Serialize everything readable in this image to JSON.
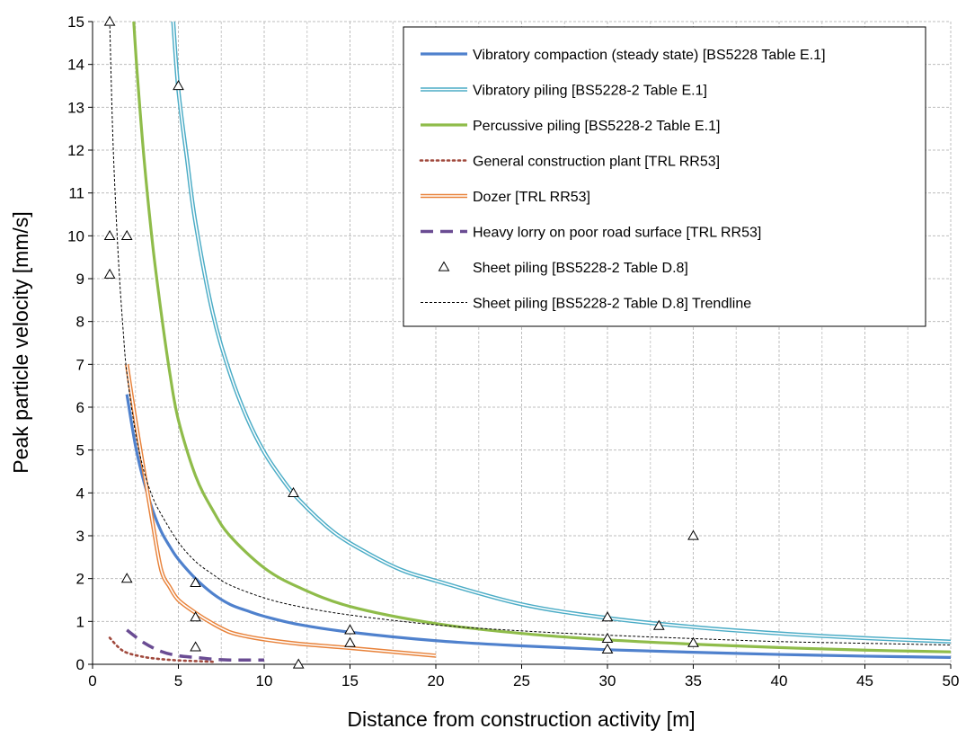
{
  "chart_data": {
    "type": "line",
    "title": "",
    "xlabel": "Distance from construction activity [m]",
    "ylabel": "Peak particle velocity [mm/s]",
    "xlim": [
      0,
      50
    ],
    "ylim": [
      0,
      15
    ],
    "xticks": [
      0,
      5,
      10,
      15,
      20,
      25,
      30,
      35,
      40,
      45,
      50
    ],
    "yticks": [
      0,
      1,
      2,
      3,
      4,
      5,
      6,
      7,
      8,
      9,
      10,
      11,
      12,
      13,
      14,
      15
    ],
    "grid": true,
    "grid_style": "dashed",
    "legend_position": "top-right",
    "series": [
      {
        "name": "Vibratory compaction (steady state) [BS5228 Table E.1]",
        "style": "solid-thick",
        "color": "#4f81cd",
        "x": [
          2,
          2.5,
          3,
          3.5,
          4,
          4.5,
          5,
          6,
          7,
          8,
          9,
          10,
          12,
          15,
          20,
          25,
          30,
          35,
          40,
          45,
          50
        ],
        "y": [
          6.3,
          5.1,
          4.25,
          3.6,
          3.1,
          2.75,
          2.45,
          2.0,
          1.65,
          1.4,
          1.25,
          1.12,
          0.93,
          0.75,
          0.55,
          0.43,
          0.34,
          0.28,
          0.23,
          0.19,
          0.16
        ]
      },
      {
        "name": "Vibratory piling [BS5228-2 Table E.1]",
        "style": "double-line",
        "color": "#4bacc6",
        "x": [
          4.7,
          5,
          5.5,
          6,
          7,
          8,
          9,
          10,
          11,
          12,
          14,
          16,
          18,
          20,
          25,
          30,
          35,
          40,
          45,
          50
        ],
        "y": [
          15,
          13.4,
          11.8,
          10.3,
          8.2,
          6.8,
          5.75,
          4.95,
          4.35,
          3.85,
          3.1,
          2.6,
          2.2,
          1.95,
          1.4,
          1.08,
          0.87,
          0.72,
          0.61,
          0.53
        ]
      },
      {
        "name": "Percussive piling [BS5228-2 Table E.1]",
        "style": "solid-thick",
        "color": "#8fbc4a",
        "x": [
          2.4,
          2.6,
          3,
          3.5,
          4,
          4.5,
          5,
          6,
          7,
          8,
          10,
          12,
          15,
          20,
          25,
          30,
          35,
          40,
          45,
          50
        ],
        "y": [
          15,
          13.8,
          11.8,
          9.8,
          8.2,
          6.8,
          5.7,
          4.4,
          3.6,
          3.0,
          2.25,
          1.8,
          1.35,
          0.95,
          0.72,
          0.57,
          0.47,
          0.39,
          0.33,
          0.29
        ]
      },
      {
        "name": "General construction plant [TRL RR53]",
        "style": "dotted",
        "color": "#a0483c",
        "x": [
          1,
          1.5,
          2,
          3,
          4,
          5,
          6,
          7
        ],
        "y": [
          0.62,
          0.4,
          0.27,
          0.17,
          0.12,
          0.09,
          0.075,
          0.06
        ]
      },
      {
        "name": "Dozer  [TRL RR53]",
        "style": "double-line",
        "color": "#e8823a",
        "x": [
          2,
          2.5,
          3,
          3.5,
          4,
          4.5,
          5,
          6,
          7,
          8,
          9,
          10,
          12,
          15,
          20
        ],
        "y": [
          7.0,
          5.7,
          4.5,
          3.3,
          2.2,
          1.8,
          1.5,
          1.2,
          0.95,
          0.75,
          0.65,
          0.58,
          0.48,
          0.38,
          0.2
        ]
      },
      {
        "name": "Heavy lorry on poor road surface [TRL RR53]",
        "style": "dashed-thick",
        "color": "#6a4c93",
        "x": [
          2,
          3,
          4,
          5,
          6,
          7,
          8,
          9,
          10
        ],
        "y": [
          0.8,
          0.5,
          0.3,
          0.2,
          0.16,
          0.12,
          0.1,
          0.1,
          0.1
        ]
      },
      {
        "name": "Sheet piling [BS5228-2 Table D.8]",
        "style": "markers",
        "marker": "triangle",
        "color": "#000000",
        "x": [
          1,
          1,
          1,
          2,
          2,
          5,
          6,
          6,
          6,
          11.7,
          12,
          15,
          15,
          30,
          30,
          30,
          33,
          35,
          35
        ],
        "y": [
          15,
          10,
          9.1,
          10,
          2,
          13.5,
          1.9,
          1.1,
          0.4,
          4.0,
          0.0,
          0.8,
          0.5,
          1.1,
          0.6,
          0.35,
          0.9,
          3.0,
          0.5
        ]
      },
      {
        "name": "Sheet piling [BS5228-2 Table D.8] Trendline",
        "style": "dashed-thin",
        "color": "#000000",
        "x": [
          1,
          1.2,
          1.5,
          1.8,
          2,
          2.5,
          3,
          3.5,
          4,
          5,
          6,
          7,
          8,
          10,
          12,
          15,
          20,
          25,
          30,
          35,
          40,
          45,
          50
        ],
        "y": [
          15,
          12.1,
          9.5,
          7.7,
          6.8,
          5.4,
          4.5,
          3.9,
          3.5,
          2.85,
          2.4,
          2.1,
          1.85,
          1.55,
          1.35,
          1.15,
          0.92,
          0.78,
          0.68,
          0.6,
          0.53,
          0.49,
          0.45
        ]
      }
    ]
  }
}
